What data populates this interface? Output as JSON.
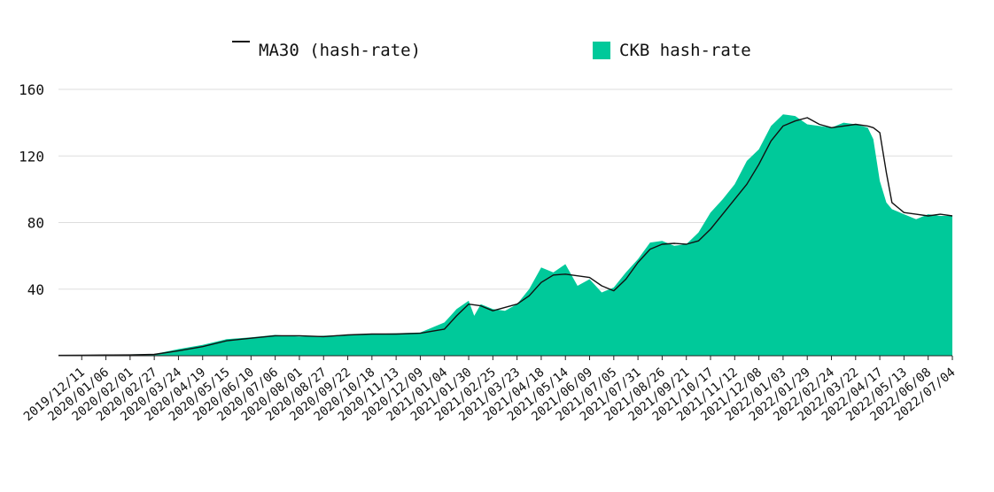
{
  "colors": {
    "area": "#00c99a",
    "line": "#111111",
    "grid": "#dddddd",
    "axis": "#222222"
  },
  "chart_data": {
    "type": "area",
    "legend_position": "top",
    "grid": true,
    "ylim": [
      0,
      160
    ],
    "y_ticks": [
      40,
      80,
      120,
      160
    ],
    "y_tick_labels": [
      "40",
      "80",
      "120",
      "160"
    ],
    "x_tick_labels": [
      "2019/12/11",
      "2020/01/06",
      "2020/02/01",
      "2020/02/27",
      "2020/03/24",
      "2020/04/19",
      "2020/05/15",
      "2020/06/10",
      "2020/07/06",
      "2020/08/01",
      "2020/08/27",
      "2020/09/22",
      "2020/10/18",
      "2020/11/13",
      "2020/12/09",
      "2021/01/04",
      "2021/01/30",
      "2021/02/25",
      "2021/03/23",
      "2021/04/18",
      "2021/05/14",
      "2021/06/09",
      "2021/07/05",
      "2021/07/31",
      "2021/08/26",
      "2021/09/21",
      "2021/10/17",
      "2021/11/12",
      "2021/12/08",
      "2022/01/03",
      "2022/01/29",
      "2022/02/24",
      "2022/03/22",
      "2022/04/17",
      "2022/05/13",
      "2022/06/08",
      "2022/07/04"
    ],
    "x_start": "2019/11/16",
    "x_end": "2022/07/04",
    "series": [
      {
        "name": "CKB hash-rate",
        "kind": "area",
        "x": [
          "2019/11/16",
          "2019/12/11",
          "2020/01/06",
          "2020/02/01",
          "2020/02/27",
          "2020/03/24",
          "2020/04/19",
          "2020/05/15",
          "2020/06/10",
          "2020/07/06",
          "2020/08/01",
          "2020/08/27",
          "2020/09/22",
          "2020/10/18",
          "2020/11/13",
          "2020/12/09",
          "2021/01/04",
          "2021/01/17",
          "2021/01/30",
          "2021/02/05",
          "2021/02/12",
          "2021/02/25",
          "2021/03/10",
          "2021/03/23",
          "2021/04/05",
          "2021/04/18",
          "2021/05/01",
          "2021/05/14",
          "2021/05/27",
          "2021/06/09",
          "2021/06/22",
          "2021/07/05",
          "2021/07/18",
          "2021/07/31",
          "2021/08/13",
          "2021/08/26",
          "2021/09/08",
          "2021/09/21",
          "2021/10/04",
          "2021/10/17",
          "2021/10/30",
          "2021/11/12",
          "2021/11/25",
          "2021/12/08",
          "2021/12/21",
          "2022/01/03",
          "2022/01/16",
          "2022/01/29",
          "2022/02/11",
          "2022/02/24",
          "2022/03/09",
          "2022/03/22",
          "2022/04/04",
          "2022/04/10",
          "2022/04/17",
          "2022/04/24",
          "2022/04/30",
          "2022/05/13",
          "2022/05/26",
          "2022/06/08",
          "2022/06/21",
          "2022/07/04"
        ],
        "values": [
          0.3,
          0.5,
          0.5,
          0.8,
          1.0,
          4.0,
          6.5,
          10.0,
          11.0,
          12.5,
          11.5,
          12.0,
          12.5,
          13.0,
          13.5,
          14.0,
          20.0,
          28.0,
          33.0,
          24.0,
          31.0,
          28.0,
          27.0,
          31.0,
          40.0,
          53.0,
          50.0,
          55.0,
          42.0,
          46.0,
          38.0,
          41.0,
          50.0,
          58.0,
          68.0,
          69.0,
          66.0,
          67.0,
          74.0,
          86.0,
          94.0,
          103.0,
          117.0,
          124.0,
          138.0,
          145.0,
          144.0,
          139.0,
          138.0,
          137.0,
          140.0,
          139.0,
          137.0,
          130.0,
          105.0,
          92.0,
          88.0,
          85.0,
          82.0,
          85.0,
          84.0,
          84.0
        ]
      },
      {
        "name": "MA30 (hash-rate)",
        "kind": "line",
        "x": [
          "2019/11/16",
          "2019/12/11",
          "2020/01/06",
          "2020/02/01",
          "2020/02/27",
          "2020/03/24",
          "2020/04/19",
          "2020/05/15",
          "2020/06/10",
          "2020/07/06",
          "2020/08/01",
          "2020/08/27",
          "2020/09/22",
          "2020/10/18",
          "2020/11/13",
          "2020/12/09",
          "2021/01/04",
          "2021/01/17",
          "2021/01/30",
          "2021/02/12",
          "2021/02/25",
          "2021/03/10",
          "2021/03/23",
          "2021/04/05",
          "2021/04/18",
          "2021/05/01",
          "2021/05/14",
          "2021/05/27",
          "2021/06/09",
          "2021/06/22",
          "2021/07/05",
          "2021/07/18",
          "2021/07/31",
          "2021/08/13",
          "2021/08/26",
          "2021/09/08",
          "2021/09/21",
          "2021/10/04",
          "2021/10/17",
          "2021/10/30",
          "2021/11/12",
          "2021/11/25",
          "2021/12/08",
          "2021/12/21",
          "2022/01/03",
          "2022/01/16",
          "2022/01/29",
          "2022/02/11",
          "2022/02/24",
          "2022/03/09",
          "2022/03/22",
          "2022/04/04",
          "2022/04/10",
          "2022/04/17",
          "2022/04/24",
          "2022/04/30",
          "2022/05/13",
          "2022/05/26",
          "2022/06/08",
          "2022/06/21",
          "2022/07/04"
        ],
        "values": [
          0.2,
          0.3,
          0.4,
          0.5,
          0.8,
          3.0,
          5.5,
          9.0,
          10.5,
          12.0,
          12.0,
          11.5,
          12.5,
          13.0,
          13.0,
          13.5,
          16.0,
          24.0,
          31.0,
          30.0,
          27.0,
          29.0,
          31.0,
          36.0,
          44.0,
          48.5,
          49.0,
          48.0,
          47.0,
          42.0,
          39.0,
          46.0,
          56.0,
          64.0,
          67.0,
          67.5,
          67.0,
          69.0,
          76.0,
          85.0,
          94.0,
          103.0,
          115.0,
          129.0,
          138.0,
          141.0,
          143.0,
          139.0,
          137.0,
          138.0,
          139.0,
          138.0,
          137.0,
          134.0,
          110.0,
          92.0,
          86.0,
          85.0,
          84.0,
          85.0,
          84.0
        ]
      }
    ]
  }
}
